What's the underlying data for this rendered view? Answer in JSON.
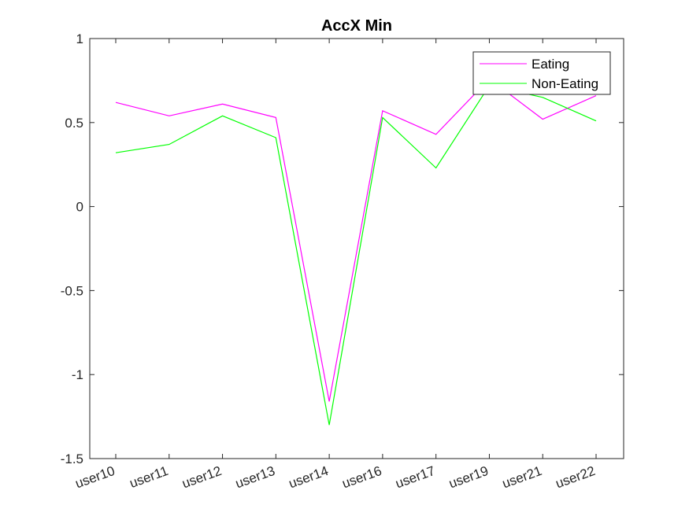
{
  "chart_data": {
    "type": "line",
    "title": "AccX Min",
    "xlabel": "",
    "ylabel": "",
    "categories": [
      "user10",
      "user11",
      "user12",
      "user13",
      "user14",
      "user16",
      "user17",
      "user19",
      "user21",
      "user22"
    ],
    "ylim": [
      -1.5,
      1
    ],
    "yticks": [
      -1.5,
      -1,
      -0.5,
      0,
      0.5,
      1
    ],
    "ytick_labels": [
      "-1.5",
      "-1",
      "-0.5",
      "0",
      "0.5",
      "1"
    ],
    "grid": false,
    "legend_position": "top-right",
    "series": [
      {
        "name": "Eating",
        "color": "#ff00ff",
        "values": [
          0.62,
          0.54,
          0.61,
          0.53,
          -1.16,
          0.57,
          0.43,
          0.76,
          0.52,
          0.66
        ]
      },
      {
        "name": "Non-Eating",
        "color": "#00ff00",
        "values": [
          0.32,
          0.37,
          0.54,
          0.41,
          -1.3,
          0.53,
          0.23,
          0.72,
          0.65,
          0.51
        ]
      }
    ]
  }
}
